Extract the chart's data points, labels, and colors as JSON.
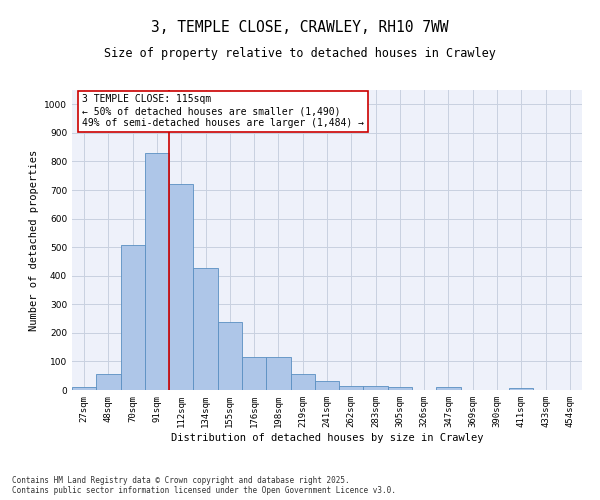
{
  "title_line1": "3, TEMPLE CLOSE, CRAWLEY, RH10 7WW",
  "title_line2": "Size of property relative to detached houses in Crawley",
  "xlabel": "Distribution of detached houses by size in Crawley",
  "ylabel": "Number of detached properties",
  "bin_labels": [
    "27sqm",
    "48sqm",
    "70sqm",
    "91sqm",
    "112sqm",
    "134sqm",
    "155sqm",
    "176sqm",
    "198sqm",
    "219sqm",
    "241sqm",
    "262sqm",
    "283sqm",
    "305sqm",
    "326sqm",
    "347sqm",
    "369sqm",
    "390sqm",
    "411sqm",
    "433sqm",
    "454sqm"
  ],
  "bar_heights": [
    10,
    57,
    506,
    828,
    722,
    428,
    238,
    115,
    115,
    55,
    30,
    14,
    14,
    10,
    0,
    10,
    0,
    0,
    8,
    0,
    0
  ],
  "bar_color": "#aec6e8",
  "bar_edge_color": "#5a8fc2",
  "ylim": [
    0,
    1050
  ],
  "yticks": [
    0,
    100,
    200,
    300,
    400,
    500,
    600,
    700,
    800,
    900,
    1000
  ],
  "vline_x_idx": 3.5,
  "vline_color": "#cc0000",
  "annotation_title": "3 TEMPLE CLOSE: 115sqm",
  "annotation_line1": "← 50% of detached houses are smaller (1,490)",
  "annotation_line2": "49% of semi-detached houses are larger (1,484) →",
  "annotation_box_color": "#cc0000",
  "footer_line1": "Contains HM Land Registry data © Crown copyright and database right 2025.",
  "footer_line2": "Contains public sector information licensed under the Open Government Licence v3.0.",
  "bg_color": "#eef1fa",
  "grid_color": "#c8d0e0",
  "title_fontsize": 10.5,
  "subtitle_fontsize": 8.5,
  "axis_label_fontsize": 7.5,
  "tick_fontsize": 6.5,
  "annotation_fontsize": 7.0,
  "footer_fontsize": 5.5
}
